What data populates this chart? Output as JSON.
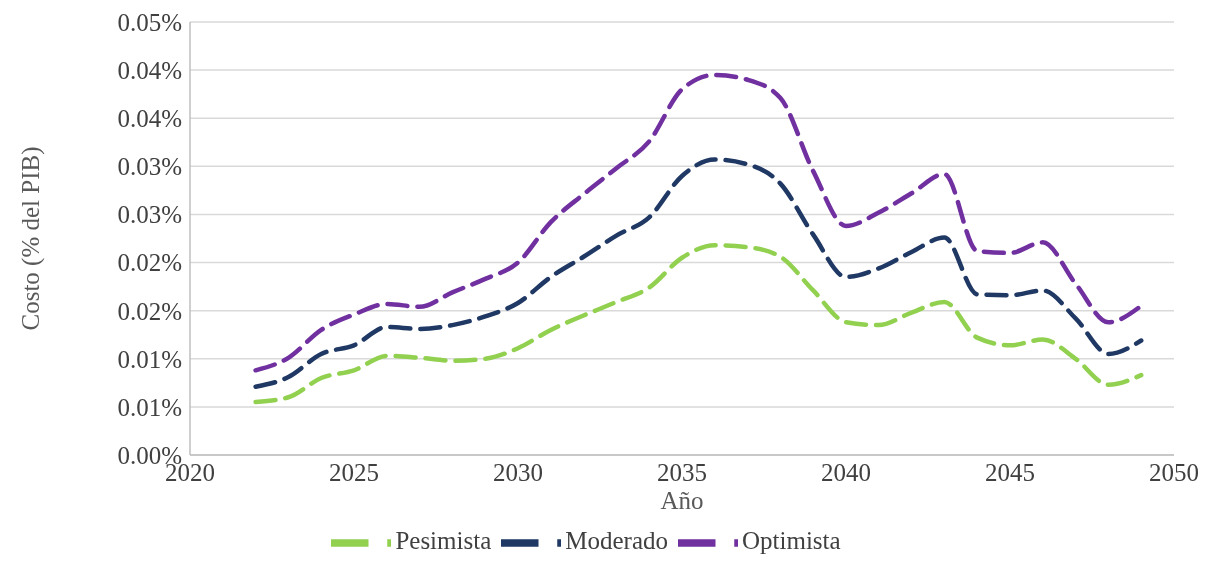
{
  "chart_data": {
    "type": "line",
    "xlabel": "Año",
    "ylabel": "Costo (% del PIB)",
    "x": [
      2022,
      2023,
      2024,
      2025,
      2026,
      2027,
      2028,
      2029,
      2030,
      2031,
      2032,
      2033,
      2034,
      2035,
      2036,
      2037,
      2038,
      2039,
      2040,
      2041,
      2042,
      2043,
      2044,
      2045,
      2046,
      2047,
      2048,
      2049
    ],
    "series": [
      {
        "name": "Pesimista",
        "color": "#92d050",
        "values": [
          0.0055,
          0.006,
          0.008,
          0.0088,
          0.0103,
          0.0101,
          0.0098,
          0.01,
          0.0111,
          0.013,
          0.0145,
          0.0159,
          0.0174,
          0.0205,
          0.0218,
          0.0216,
          0.0206,
          0.0171,
          0.0138,
          0.0135,
          0.0148,
          0.0159,
          0.0122,
          0.0114,
          0.012,
          0.01,
          0.0073,
          0.0083
        ]
      },
      {
        "name": "Moderado",
        "color": "#1f3864",
        "values": [
          0.0071,
          0.0081,
          0.0105,
          0.0114,
          0.0133,
          0.0131,
          0.0135,
          0.0144,
          0.0158,
          0.0185,
          0.0206,
          0.0228,
          0.0247,
          0.029,
          0.0307,
          0.0302,
          0.0282,
          0.0229,
          0.0185,
          0.0194,
          0.0211,
          0.0226,
          0.0167,
          0.0166,
          0.0171,
          0.0142,
          0.0105,
          0.0119
        ]
      },
      {
        "name": "Optimista",
        "color": "#7030a0",
        "values": [
          0.0088,
          0.0101,
          0.013,
          0.0146,
          0.0157,
          0.0154,
          0.0169,
          0.0183,
          0.02,
          0.0242,
          0.0271,
          0.0298,
          0.0326,
          0.038,
          0.0395,
          0.039,
          0.0371,
          0.0295,
          0.0238,
          0.0252,
          0.0272,
          0.0292,
          0.0212,
          0.021,
          0.0221,
          0.0178,
          0.0138,
          0.0155
        ]
      }
    ],
    "xlim": [
      2020,
      2050
    ],
    "xticks": [
      2020,
      2025,
      2030,
      2035,
      2040,
      2045,
      2050
    ],
    "ylim": [
      0,
      0.045
    ],
    "yticks": [
      {
        "value": 0,
        "label": "0.00%"
      },
      {
        "value": 0.005,
        "label": "0.01%"
      },
      {
        "value": 0.01,
        "label": "0.01%"
      },
      {
        "value": 0.015,
        "label": "0.02%"
      },
      {
        "value": 0.02,
        "label": "0.02%"
      },
      {
        "value": 0.025,
        "label": "0.03%"
      },
      {
        "value": 0.03,
        "label": "0.03%"
      },
      {
        "value": 0.035,
        "label": "0.04%"
      },
      {
        "value": 0.04,
        "label": "0.04%"
      },
      {
        "value": 0.045,
        "label": "0.05%"
      }
    ],
    "grid": "y",
    "legend": "bottom",
    "marker": "none",
    "line_style": "dashed"
  }
}
